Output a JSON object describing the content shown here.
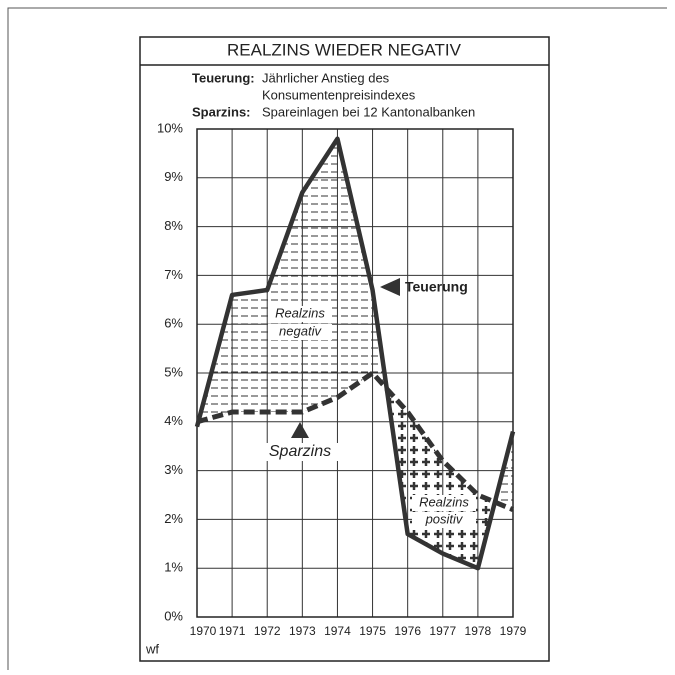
{
  "chart_data": {
    "type": "line",
    "title": "REALZINS WIEDER NEGATIV",
    "notes": [
      {
        "term": "Teuerung:",
        "lines": [
          "Jährlicher Anstieg des",
          "Konsumentenpreisindexes"
        ]
      },
      {
        "term": "Sparzins:",
        "lines": [
          "Spareinlagen bei 12 Kantonalbanken"
        ]
      }
    ],
    "categories": [
      "1970",
      "1971",
      "1972",
      "1973",
      "1974",
      "1975",
      "1976",
      "1977",
      "1978",
      "1979"
    ],
    "series": [
      {
        "name": "Teuerung",
        "color": "#333333",
        "values": [
          3.9,
          6.6,
          6.7,
          8.7,
          9.8,
          6.7,
          1.7,
          1.3,
          1.0,
          3.8
        ]
      },
      {
        "name": "Sparzins",
        "color": "#333333",
        "values": [
          4.0,
          4.2,
          4.2,
          4.2,
          4.5,
          5.0,
          4.2,
          3.2,
          2.5,
          2.2
        ]
      }
    ],
    "ylim": [
      0,
      10
    ],
    "yticks": [
      {
        "value": 0,
        "label": "0%"
      },
      {
        "value": 1,
        "label": "1%"
      },
      {
        "value": 2,
        "label": "2%"
      },
      {
        "value": 3,
        "label": "3%"
      },
      {
        "value": 4,
        "label": "4%"
      },
      {
        "value": 5,
        "label": "5%"
      },
      {
        "value": 6,
        "label": "6%"
      },
      {
        "value": 7,
        "label": "7%"
      },
      {
        "value": 8,
        "label": "8%"
      },
      {
        "value": 9,
        "label": "9%"
      },
      {
        "value": 10,
        "label": "10%"
      }
    ],
    "grid": true,
    "annotations": [
      "Realzins",
      "negativ",
      "Realzins",
      "positiv"
    ],
    "source": "wf"
  }
}
